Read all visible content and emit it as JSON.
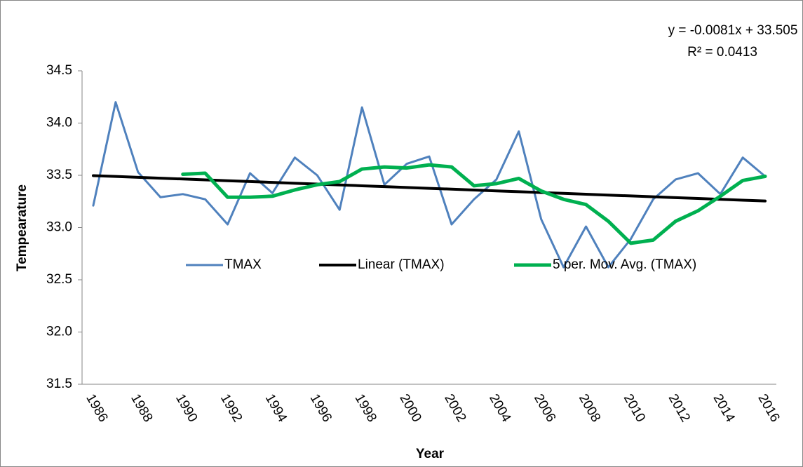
{
  "chart_data": {
    "type": "line",
    "x_label": "Year",
    "y_label": "Tempearature",
    "annotations": [
      "y = -0.0081x + 33.505",
      "R² = 0.0413"
    ],
    "categories": [
      1986,
      null,
      1988,
      null,
      1990,
      null,
      1992,
      null,
      1994,
      null,
      1996,
      null,
      1998,
      null,
      2000,
      null,
      2002,
      null,
      2004,
      null,
      2006,
      null,
      2008,
      null,
      2010,
      null,
      2012,
      null,
      2014,
      null,
      2016
    ],
    "series": [
      {
        "name": "TMAX",
        "color": "#4f81bd",
        "values": [
          33.21,
          34.2,
          33.53,
          33.29,
          33.32,
          33.27,
          33.03,
          33.52,
          33.33,
          33.67,
          33.5,
          33.17,
          34.15,
          33.41,
          33.61,
          33.68,
          33.03,
          33.27,
          33.46,
          33.92,
          33.08,
          32.62,
          33.01,
          32.62,
          32.89,
          33.27,
          33.46,
          33.52,
          33.32,
          33.67,
          33.49
        ]
      },
      {
        "name": "Linear (TMAX)",
        "color": "#000000",
        "values": [
          33.4969,
          33.4888,
          33.4807,
          33.4726,
          33.4645,
          33.4564,
          33.4483,
          33.4402,
          33.4321,
          33.424,
          33.4159,
          33.4078,
          33.3997,
          33.3916,
          33.3835,
          33.3754,
          33.3673,
          33.3592,
          33.3511,
          33.343,
          33.3349,
          33.3268,
          33.3187,
          33.3106,
          33.3025,
          33.2944,
          33.2863,
          33.2782,
          33.2701,
          33.262,
          33.2539
        ]
      },
      {
        "name": "5 per. Mov. Avg. (TMAX)",
        "color": "#00b050",
        "values": [
          null,
          null,
          null,
          null,
          33.51,
          33.52,
          33.29,
          33.29,
          33.3,
          33.36,
          33.41,
          33.44,
          33.56,
          33.58,
          33.57,
          33.6,
          33.58,
          33.4,
          33.42,
          33.47,
          33.35,
          33.27,
          33.22,
          33.06,
          32.85,
          32.88,
          33.06,
          33.16,
          33.3,
          33.45,
          33.49
        ]
      }
    ],
    "ylim": [
      31.5,
      34.5
    ],
    "yticks": [
      31.5,
      {
        "value": 32,
        "label": "32.0"
      },
      32.5,
      {
        "value": 33,
        "label": "33.0"
      },
      33.5,
      {
        "value": 34,
        "label": "34.0"
      },
      34.5
    ],
    "grid": false,
    "legend": "center"
  }
}
